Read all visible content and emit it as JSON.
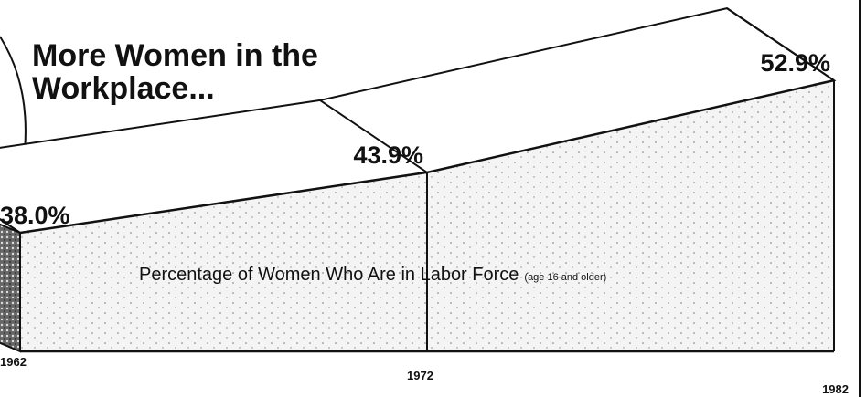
{
  "chart_data": {
    "type": "area",
    "title": [
      "More Women in the",
      "Workplace..."
    ],
    "label": "Percentage of Women Who Are in Labor Force",
    "label_note": "(age 16 and older)",
    "x": [
      1962,
      1972,
      1982
    ],
    "values": [
      38.0,
      43.9,
      52.9
    ],
    "value_labels": [
      "38.0%",
      "43.9%",
      "52.9%"
    ],
    "color": "#ececec"
  }
}
